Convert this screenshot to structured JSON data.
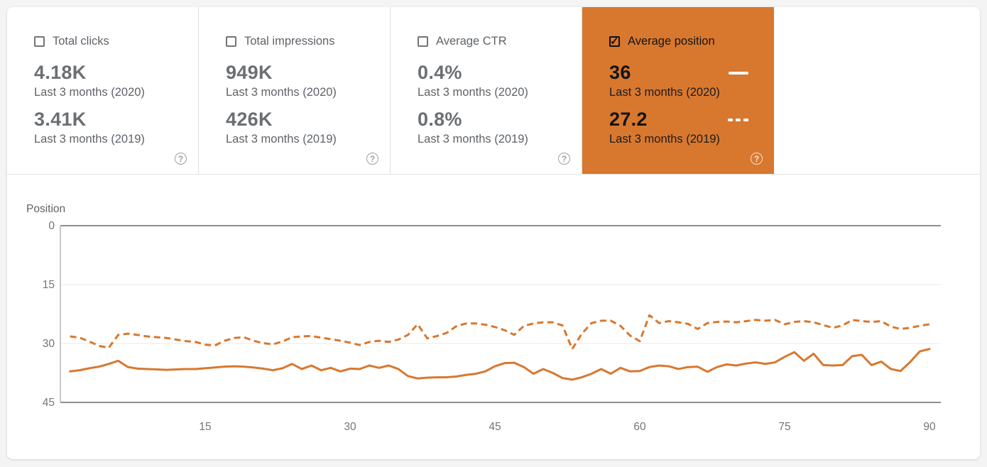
{
  "colors": {
    "accent_orange": "#d8782f",
    "page_background": "#f4f4f4",
    "grid_strong": "#8f8f8f",
    "grid_light": "#e9e9e9",
    "axis_tick_text": "#757575",
    "axis_label_text": "#5f6368"
  },
  "metrics": {
    "help_glyph": "?",
    "check_glyph": "✓",
    "cards": [
      {
        "label": "Total clicks",
        "checked": false,
        "selected": false,
        "value_2020": "4.18K",
        "period_2020": "Last 3 months (2020)",
        "value_2019": "3.41K",
        "period_2019": "Last 3 months (2019)"
      },
      {
        "label": "Total impressions",
        "checked": false,
        "selected": false,
        "value_2020": "949K",
        "period_2020": "Last 3 months (2020)",
        "value_2019": "426K",
        "period_2019": "Last 3 months (2019)"
      },
      {
        "label": "Average CTR",
        "checked": false,
        "selected": false,
        "value_2020": "0.4%",
        "period_2020": "Last 3 months (2020)",
        "value_2019": "0.8%",
        "period_2019": "Last 3 months (2019)"
      },
      {
        "label": "Average position",
        "checked": true,
        "selected": true,
        "value_2020": "36",
        "period_2020": "Last 3 months (2020)",
        "value_2019": "27.2",
        "period_2019": "Last 3 months (2019)"
      }
    ]
  },
  "chart_data": {
    "type": "line",
    "title": "",
    "ylabel": "Position",
    "xlabel": "",
    "x_axis": {
      "unit": "day",
      "start": 1,
      "end": 90,
      "ticks": [
        15,
        30,
        45,
        60,
        75,
        90
      ]
    },
    "y_axis": {
      "min": 0,
      "max": 45,
      "ticks": [
        0,
        15,
        30,
        45
      ],
      "inverted": true
    },
    "grid": "horizontal",
    "legend_position": "inside selected metric card",
    "series": [
      {
        "name": "Last 3 months (2020)",
        "style": "solid",
        "color": "#d8782f",
        "average": 36,
        "values": [
          37.1,
          36.8,
          36.3,
          35.9,
          35.2,
          34.4,
          36.0,
          36.4,
          36.5,
          36.6,
          36.7,
          36.6,
          36.5,
          36.5,
          36.3,
          36.1,
          35.9,
          35.8,
          35.9,
          36.1,
          36.4,
          36.8,
          36.3,
          35.2,
          36.5,
          35.6,
          36.8,
          36.2,
          37.1,
          36.4,
          36.5,
          35.6,
          36.2,
          35.6,
          36.5,
          38.3,
          38.9,
          38.7,
          38.6,
          38.6,
          38.4,
          38.0,
          37.7,
          37.1,
          35.8,
          35.0,
          34.9,
          36.0,
          37.7,
          36.5,
          37.5,
          38.8,
          39.2,
          38.6,
          37.7,
          36.5,
          37.7,
          36.2,
          37.1,
          37.0,
          36.0,
          35.6,
          35.8,
          36.5,
          36.0,
          35.9,
          37.2,
          36.0,
          35.3,
          35.6,
          35.1,
          34.8,
          35.2,
          34.8,
          33.4,
          32.2,
          34.4,
          32.6,
          35.5,
          35.6,
          35.5,
          33.2,
          32.9,
          35.5,
          34.6,
          36.5,
          37.0,
          34.7,
          32.0,
          31.4
        ]
      },
      {
        "name": "Last 3 months (2019)",
        "style": "dashed",
        "color": "#d8782f",
        "average": 27.2,
        "values": [
          28.2,
          28.5,
          29.5,
          30.6,
          31.1,
          27.8,
          27.5,
          27.8,
          28.2,
          28.4,
          28.6,
          29.0,
          29.4,
          29.6,
          30.3,
          30.5,
          29.3,
          28.6,
          28.4,
          29.3,
          29.9,
          30.2,
          29.5,
          28.4,
          28.2,
          28.1,
          28.5,
          28.9,
          29.3,
          29.8,
          30.4,
          29.6,
          29.3,
          29.6,
          29.0,
          27.8,
          25.1,
          28.7,
          28.1,
          27.3,
          25.6,
          24.9,
          24.9,
          25.2,
          25.8,
          26.6,
          27.8,
          25.5,
          24.9,
          24.6,
          24.6,
          25.4,
          31.4,
          27.5,
          24.8,
          24.2,
          24.2,
          25.5,
          28.0,
          29.4,
          22.8,
          24.8,
          24.3,
          24.6,
          25.0,
          26.3,
          24.8,
          24.5,
          24.4,
          24.6,
          24.3,
          24.0,
          24.2,
          24.0,
          25.1,
          24.5,
          24.3,
          24.6,
          25.3,
          26.0,
          25.4,
          24.0,
          24.3,
          24.5,
          24.3,
          25.7,
          26.3,
          26.0,
          25.5,
          25.1
        ]
      }
    ]
  }
}
